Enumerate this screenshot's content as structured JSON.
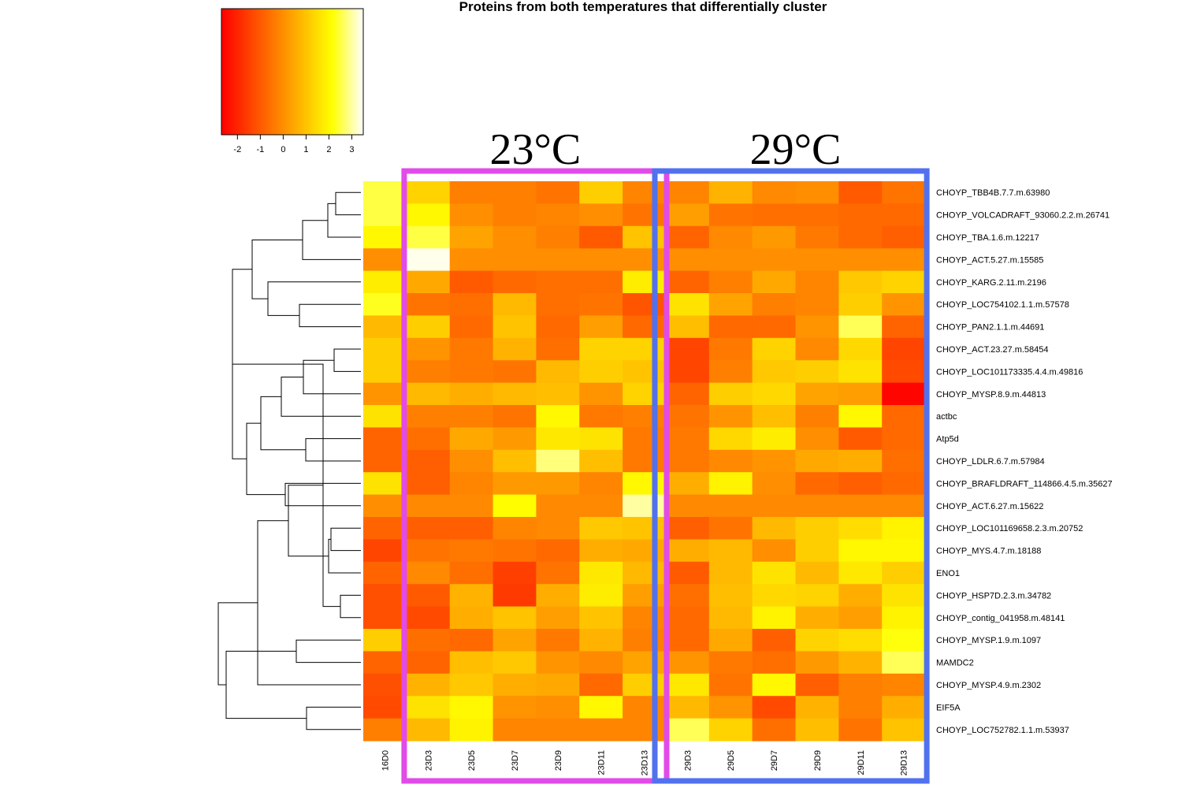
{
  "chart_data": {
    "type": "heatmap",
    "title": "Proteins from both temperatures that differentially cluster",
    "color_scale": {
      "ticks": [
        -2,
        -1,
        0,
        1,
        2,
        3
      ],
      "range": [
        -2.7,
        3.5
      ],
      "low_color": "#ff0000",
      "mid_color": "#ffff00",
      "high_color": "#ffffff"
    },
    "columns": [
      "16D0",
      "23D3",
      "23D5",
      "23D7",
      "23D9",
      "23D11",
      "23D13",
      "29D3",
      "29D5",
      "29D7",
      "29D9",
      "29D11",
      "29D13"
    ],
    "rows": [
      "CHOYP_TBB4B.7.7.m.63980",
      "CHOYP_VOLCADRAFT_93060.2.2.m.26741",
      "CHOYP_TBA.1.6.m.12217",
      "CHOYP_ACT.5.27.m.15585",
      "CHOYP_KARG.2.11.m.2196",
      "CHOYP_LOC754102.1.1.m.57578",
      "CHOYP_PAN2.1.1.m.44691",
      "CHOYP_ACT.23.27.m.58454",
      "CHOYP_LOC101173335.4.4.m.49816",
      "CHOYP_MYSP.8.9.m.44813",
      "actbc",
      "Atp5d",
      "CHOYP_LDLR.6.7.m.57984",
      "CHOYP_BRAFLDRAFT_114866.4.5.m.35627",
      "CHOYP_ACT.6.27.m.15622",
      "CHOYP_LOC101169658.2.3.m.20752",
      "CHOYP_MYS.4.7.m.18188",
      "ENO1",
      "CHOYP_HSP7D.2.3.m.34782",
      "CHOYP_contig_041958.m.48141",
      "CHOYP_MYSP.1.9.m.1097",
      "MAMDC2",
      "CHOYP_MYSP.4.9.m.2302",
      "EIF5A",
      "CHOYP_LOC752782.1.1.m.53937"
    ],
    "values": [
      [
        2.5,
        1.3,
        -0.3,
        -0.3,
        -0.5,
        1.2,
        -0.2,
        -0.2,
        0.7,
        -0.1,
        0.0,
        -1.0,
        -0.5
      ],
      [
        2.5,
        2.0,
        0.0,
        -0.3,
        -0.2,
        0.0,
        -0.5,
        0.3,
        -0.5,
        -0.6,
        -0.6,
        -0.7,
        -0.7
      ],
      [
        2.0,
        2.5,
        0.4,
        0.0,
        -0.3,
        -1.0,
        1.0,
        -0.8,
        -0.1,
        0.2,
        -0.4,
        -0.7,
        -0.9
      ],
      [
        0.0,
        3.4,
        0.0,
        0.0,
        0.0,
        0.0,
        0.0,
        0.0,
        0.0,
        0.0,
        0.0,
        0.0,
        0.0
      ],
      [
        1.8,
        0.5,
        -1.0,
        -0.7,
        -0.6,
        -0.6,
        1.8,
        -0.8,
        -0.3,
        0.5,
        -0.2,
        1.1,
        1.3
      ],
      [
        2.3,
        -0.5,
        -0.6,
        0.8,
        -0.6,
        -0.5,
        -1.1,
        1.6,
        0.4,
        -0.3,
        -0.2,
        1.2,
        0.1
      ],
      [
        0.8,
        1.2,
        -0.7,
        1.0,
        -0.7,
        0.3,
        -0.7,
        0.9,
        -0.7,
        -0.7,
        0.1,
        2.6,
        -0.8
      ],
      [
        1.2,
        0.1,
        -0.4,
        0.7,
        -0.6,
        1.3,
        1.3,
        -1.4,
        -0.4,
        1.3,
        -0.1,
        1.4,
        -1.4
      ],
      [
        1.2,
        -0.3,
        -0.4,
        -0.5,
        0.8,
        1.2,
        1.0,
        -1.4,
        -0.3,
        1.1,
        1.2,
        1.6,
        -1.3
      ],
      [
        0.1,
        0.8,
        0.6,
        0.8,
        0.9,
        0.1,
        1.3,
        -0.8,
        1.2,
        1.4,
        0.4,
        0.3,
        -2.6
      ],
      [
        1.6,
        -0.3,
        -0.3,
        -0.5,
        2.0,
        -0.4,
        -0.3,
        -0.5,
        0.1,
        0.9,
        -0.3,
        2.0,
        -0.7
      ],
      [
        -0.8,
        -0.6,
        0.5,
        0.2,
        1.7,
        1.6,
        -0.4,
        -0.4,
        1.4,
        1.8,
        0.0,
        -1.0,
        -0.7
      ],
      [
        -0.8,
        -0.9,
        0.0,
        0.9,
        2.8,
        0.9,
        -0.4,
        -0.4,
        -0.1,
        0.1,
        0.5,
        0.6,
        -0.6
      ],
      [
        1.6,
        -0.9,
        -0.2,
        0.2,
        0.2,
        -0.2,
        2.0,
        0.6,
        1.9,
        0.0,
        -0.7,
        -0.9,
        -0.7
      ],
      [
        0.0,
        -0.1,
        -0.1,
        2.1,
        -0.1,
        -0.1,
        3.0,
        -0.1,
        -0.1,
        -0.1,
        -0.1,
        -0.1,
        -0.1
      ],
      [
        -0.8,
        -0.9,
        -0.9,
        -0.2,
        -0.1,
        1.1,
        1.0,
        -0.9,
        -0.5,
        0.8,
        1.2,
        1.5,
        1.9
      ],
      [
        -1.4,
        -0.5,
        -0.4,
        -0.5,
        -0.7,
        0.6,
        0.5,
        0.6,
        0.8,
        0.0,
        1.2,
        2.0,
        2.0
      ],
      [
        -0.8,
        -0.1,
        -0.6,
        -1.5,
        -0.5,
        1.7,
        0.8,
        -1.0,
        0.8,
        1.6,
        0.8,
        1.7,
        1.2
      ],
      [
        -1.2,
        -1.0,
        0.7,
        -1.6,
        0.6,
        1.8,
        0.3,
        -0.6,
        0.9,
        1.4,
        1.3,
        0.6,
        1.6
      ],
      [
        -1.2,
        -1.3,
        0.6,
        1.0,
        0.3,
        1.0,
        -0.2,
        -0.7,
        0.8,
        1.9,
        0.6,
        0.3,
        1.9
      ],
      [
        1.2,
        -0.6,
        -0.7,
        0.4,
        -0.4,
        0.7,
        -0.3,
        -0.7,
        0.5,
        -0.9,
        1.3,
        1.5,
        2.2
      ],
      [
        -0.8,
        -0.8,
        0.9,
        1.1,
        0.1,
        -0.1,
        0.4,
        0.1,
        -0.4,
        -0.6,
        0.2,
        0.7,
        2.6
      ],
      [
        -1.2,
        0.7,
        1.1,
        0.6,
        0.5,
        -0.7,
        1.2,
        1.7,
        -0.5,
        2.0,
        -0.9,
        -0.3,
        -0.2
      ],
      [
        -1.3,
        1.6,
        2.0,
        0.1,
        0.0,
        2.0,
        -0.2,
        0.8,
        0.1,
        -1.3,
        0.7,
        -0.3,
        0.6
      ],
      [
        -0.3,
        0.8,
        1.9,
        -0.2,
        -0.2,
        -0.2,
        -0.2,
        2.6,
        1.3,
        -0.6,
        0.9,
        -0.5,
        1.0
      ]
    ],
    "group_labels": [
      "23°C",
      "29°C"
    ],
    "group_colors": [
      "#e14be8",
      "#5171ef"
    ],
    "dendrogram": "rows"
  }
}
